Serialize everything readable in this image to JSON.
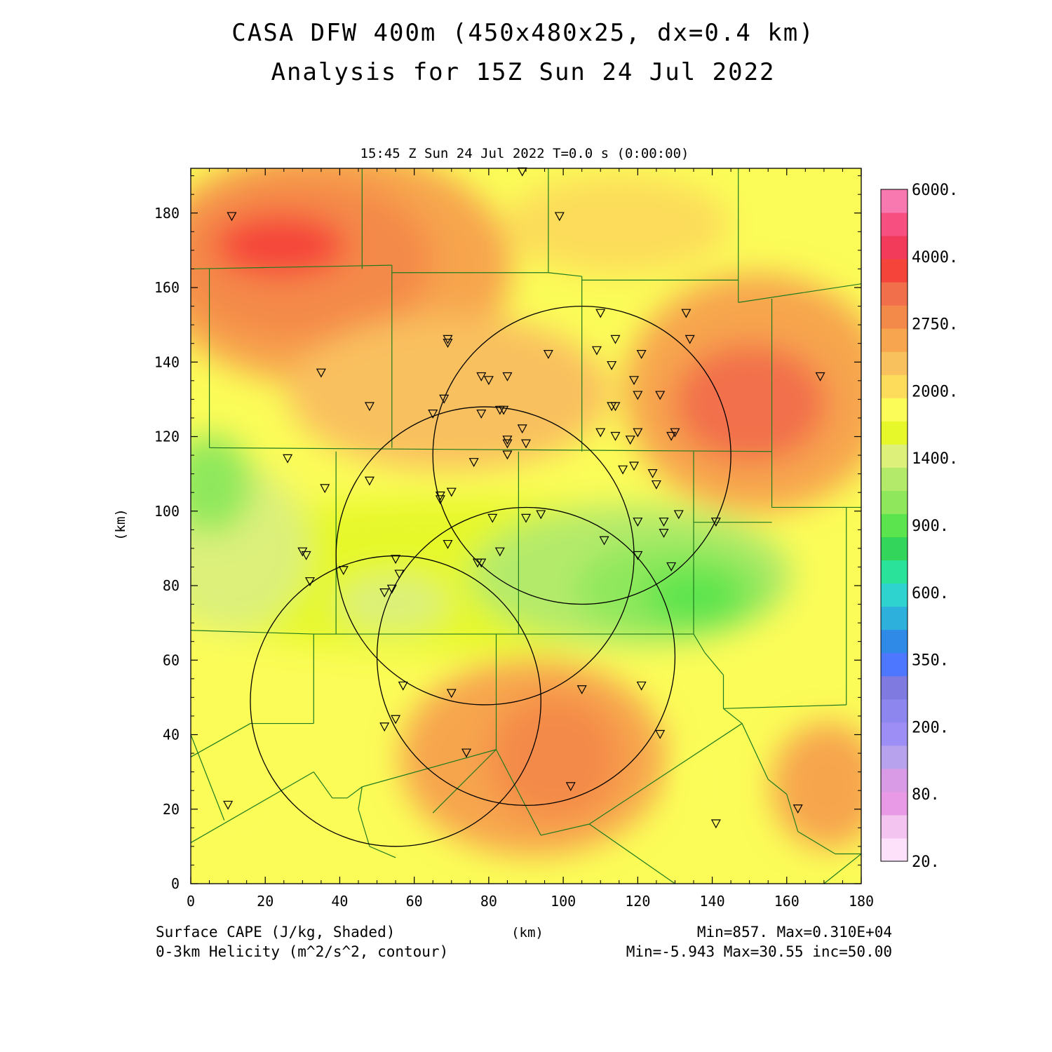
{
  "header": {
    "title_line1": "CASA DFW 400m (450x480x25, dx=0.4 km)",
    "title_line2": "Analysis for 15Z Sun 24 Jul 2022",
    "valid_time": "15:45 Z Sun 24 Jul 2022    T=0.0 s (0:00:00)"
  },
  "chart_data": {
    "type": "heatmap",
    "xlabel": "(km)",
    "ylabel": "(km)",
    "xlim": [
      0,
      180
    ],
    "ylim": [
      0,
      192
    ],
    "x_ticks": [
      "0",
      "20",
      "40",
      "60",
      "80",
      "100",
      "120",
      "140",
      "160",
      "180"
    ],
    "y_ticks": [
      "0",
      "20",
      "40",
      "60",
      "80",
      "100",
      "120",
      "140",
      "160",
      "180"
    ],
    "colorbar": {
      "levels": [
        "20.",
        "80.",
        "200.",
        "350.",
        "600.",
        "900.",
        "1400.",
        "2000.",
        "2750.",
        "4000.",
        "6000."
      ],
      "colors": [
        "#fde0fa",
        "#f3c4ef",
        "#e89ae6",
        "#da9be6",
        "#b7a2ee",
        "#9c8ef5",
        "#8e86ef",
        "#7f7ae0",
        "#4e77ff",
        "#2e8ae6",
        "#2eb0dd",
        "#2ed3d0",
        "#2ae29a",
        "#33d65a",
        "#5be44e",
        "#8fe85c",
        "#b4ea6a",
        "#dcf07a",
        "#e6f82a",
        "#fbfc58",
        "#fcdc5a",
        "#f9c05e",
        "#f7a54e",
        "#f48a4a",
        "#f26f4c",
        "#f5453a",
        "#f23a5a",
        "#f64f80",
        "#f878b0"
      ]
    },
    "field": {
      "name": "Surface CAPE",
      "units": "J/kg",
      "min": 857,
      "max": 3100
    },
    "radar_circles": [
      {
        "cx": 105,
        "cy": 115,
        "r": 40
      },
      {
        "cx": 79,
        "cy": 88,
        "r": 40
      },
      {
        "cx": 90,
        "cy": 61,
        "r": 40
      },
      {
        "cx": 55,
        "cy": 49,
        "r": 39
      }
    ],
    "stations": [
      [
        11,
        179
      ],
      [
        89,
        191
      ],
      [
        99,
        179
      ],
      [
        35,
        137
      ],
      [
        69,
        146
      ],
      [
        69,
        145
      ],
      [
        48,
        128
      ],
      [
        78,
        136
      ],
      [
        80,
        135
      ],
      [
        85,
        136
      ],
      [
        65,
        126
      ],
      [
        68,
        130
      ],
      [
        78,
        126
      ],
      [
        83,
        127
      ],
      [
        84,
        127
      ],
      [
        89,
        122
      ],
      [
        85,
        119
      ],
      [
        85,
        118
      ],
      [
        90,
        118
      ],
      [
        85,
        115
      ],
      [
        76,
        113
      ],
      [
        67,
        104
      ],
      [
        67,
        103
      ],
      [
        70,
        105
      ],
      [
        48,
        108
      ],
      [
        36,
        106
      ],
      [
        26,
        114
      ],
      [
        110,
        153
      ],
      [
        109,
        143
      ],
      [
        114,
        146
      ],
      [
        121,
        142
      ],
      [
        133,
        153
      ],
      [
        134,
        146
      ],
      [
        113,
        139
      ],
      [
        119,
        135
      ],
      [
        113,
        128
      ],
      [
        114,
        128
      ],
      [
        120,
        131
      ],
      [
        126,
        131
      ],
      [
        110,
        121
      ],
      [
        114,
        120
      ],
      [
        120,
        121
      ],
      [
        118,
        119
      ],
      [
        129,
        120
      ],
      [
        130,
        121
      ],
      [
        116,
        111
      ],
      [
        119,
        112
      ],
      [
        124,
        110
      ],
      [
        125,
        107
      ],
      [
        96,
        142
      ],
      [
        131,
        99
      ],
      [
        127,
        97
      ],
      [
        127,
        94
      ],
      [
        141,
        97
      ],
      [
        120,
        97
      ],
      [
        111,
        92
      ],
      [
        120,
        88
      ],
      [
        129,
        85
      ],
      [
        94,
        99
      ],
      [
        90,
        98
      ],
      [
        81,
        98
      ],
      [
        83,
        89
      ],
      [
        77,
        86
      ],
      [
        78,
        86
      ],
      [
        69,
        91
      ],
      [
        30,
        89
      ],
      [
        31,
        88
      ],
      [
        32,
        81
      ],
      [
        41,
        84
      ],
      [
        55,
        87
      ],
      [
        56,
        83
      ],
      [
        54,
        79
      ],
      [
        52,
        78
      ],
      [
        169,
        136
      ],
      [
        57,
        53
      ],
      [
        70,
        51
      ],
      [
        105,
        52
      ],
      [
        121,
        53
      ],
      [
        52,
        42
      ],
      [
        55,
        44
      ],
      [
        126,
        40
      ],
      [
        74,
        35
      ],
      [
        102,
        26
      ],
      [
        10,
        21
      ],
      [
        163,
        20
      ],
      [
        141,
        16
      ]
    ],
    "county_lines": [
      [
        [
          0,
          165
        ],
        [
          54,
          166
        ]
      ],
      [
        [
          46,
          192
        ],
        [
          46,
          165
        ]
      ],
      [
        [
          54,
          166
        ],
        [
          54,
          117
        ]
      ],
      [
        [
          54,
          164
        ],
        [
          96,
          164
        ]
      ],
      [
        [
          96,
          192
        ],
        [
          96,
          164
        ]
      ],
      [
        [
          96,
          164
        ],
        [
          105,
          163
        ]
      ],
      [
        [
          105,
          163
        ],
        [
          105,
          116
        ]
      ],
      [
        [
          105,
          162
        ],
        [
          147,
          162
        ]
      ],
      [
        [
          147,
          192
        ],
        [
          147,
          156
        ]
      ],
      [
        [
          147,
          156
        ],
        [
          180,
          161
        ]
      ],
      [
        [
          156,
          157
        ],
        [
          156,
          116
        ]
      ],
      [
        [
          5,
          165
        ],
        [
          5,
          117
        ]
      ],
      [
        [
          5,
          117
        ],
        [
          156,
          116
        ]
      ],
      [
        [
          39,
          116
        ],
        [
          39,
          67
        ]
      ],
      [
        [
          88,
          116
        ],
        [
          88,
          67
        ]
      ],
      [
        [
          135,
          116
        ],
        [
          135,
          67
        ]
      ],
      [
        [
          135,
          97
        ],
        [
          156,
          97
        ]
      ],
      [
        [
          156,
          116
        ],
        [
          156,
          101
        ]
      ],
      [
        [
          156,
          101
        ],
        [
          180,
          101
        ]
      ],
      [
        [
          176,
          101
        ],
        [
          176,
          48
        ]
      ],
      [
        [
          0,
          68
        ],
        [
          33,
          67
        ]
      ],
      [
        [
          33,
          67
        ],
        [
          88,
          67
        ]
      ],
      [
        [
          88,
          67
        ],
        [
          135,
          67
        ]
      ],
      [
        [
          33,
          67
        ],
        [
          33,
          43
        ]
      ],
      [
        [
          33,
          43
        ],
        [
          16,
          43
        ]
      ],
      [
        [
          16,
          43
        ],
        [
          0,
          34
        ]
      ],
      [
        [
          0,
          40
        ],
        [
          9,
          17
        ]
      ],
      [
        [
          0,
          11
        ],
        [
          33,
          30
        ]
      ],
      [
        [
          33,
          30
        ],
        [
          38,
          23
        ]
      ],
      [
        [
          38,
          23
        ],
        [
          42,
          23
        ]
      ],
      [
        [
          42,
          23
        ],
        [
          46,
          26
        ]
      ],
      [
        [
          46,
          26
        ],
        [
          82,
          36
        ]
      ],
      [
        [
          82,
          36
        ],
        [
          82,
          67
        ]
      ],
      [
        [
          82,
          36
        ],
        [
          94,
          13
        ]
      ],
      [
        [
          94,
          13
        ],
        [
          107,
          16
        ]
      ],
      [
        [
          82,
          36
        ],
        [
          65,
          19
        ]
      ],
      [
        [
          135,
          67
        ],
        [
          138,
          62
        ]
      ],
      [
        [
          138,
          62
        ],
        [
          143,
          56
        ]
      ],
      [
        [
          143,
          56
        ],
        [
          143,
          47
        ]
      ],
      [
        [
          143,
          47
        ],
        [
          176,
          48
        ]
      ],
      [
        [
          143,
          47
        ],
        [
          148,
          43
        ]
      ],
      [
        [
          148,
          43
        ],
        [
          155,
          28
        ]
      ],
      [
        [
          155,
          28
        ],
        [
          160,
          24
        ]
      ],
      [
        [
          160,
          24
        ],
        [
          163,
          14
        ]
      ],
      [
        [
          163,
          14
        ],
        [
          173,
          8
        ]
      ],
      [
        [
          173,
          8
        ],
        [
          180,
          8
        ]
      ],
      [
        [
          170,
          0
        ],
        [
          180,
          8
        ]
      ],
      [
        [
          148,
          43
        ],
        [
          107,
          16
        ]
      ],
      [
        [
          107,
          16
        ],
        [
          130,
          0
        ]
      ],
      [
        [
          46,
          26
        ],
        [
          45,
          20
        ]
      ],
      [
        [
          45,
          20
        ],
        [
          48,
          10
        ]
      ],
      [
        [
          48,
          10
        ],
        [
          55,
          7
        ]
      ]
    ]
  },
  "footer": {
    "field_label": "Surface CAPE (J/kg, Shaded)",
    "contour_label": "0-3km Helicity (m^2/s^2, contour)",
    "xlabel": "(km)",
    "field_stats": "Min=857. Max=0.310E+04",
    "contour_stats": "Min=-5.943 Max=30.55 inc=50.00"
  }
}
